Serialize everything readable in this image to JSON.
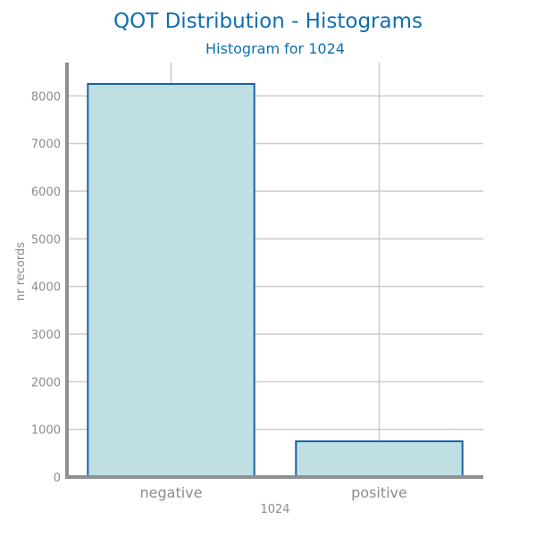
{
  "chart_data": {
    "type": "bar",
    "suptitle": "QOT Distribution - Histograms",
    "title": "Histogram for 1024",
    "xlabel": "1024",
    "ylabel": "nr records",
    "categories": [
      "negative",
      "positive"
    ],
    "values": [
      8250,
      750
    ],
    "ylim": [
      0,
      8700
    ],
    "yticks": [
      0,
      1000,
      2000,
      3000,
      4000,
      5000,
      6000,
      7000,
      8000
    ],
    "grid": true,
    "colors": {
      "bar_fill": "#bfdfe3",
      "bar_edge": "#1565a6",
      "title": "#0f6fae",
      "axis": "#909090",
      "grid": "#cccccc",
      "tick_text": "#8c8c8c"
    }
  }
}
